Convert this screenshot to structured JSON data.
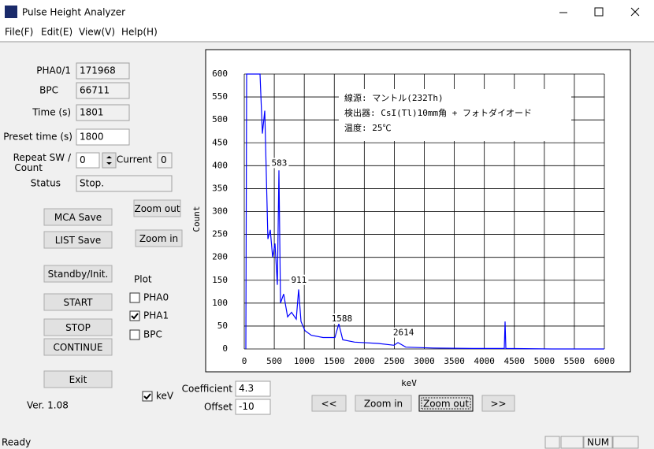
{
  "window": {
    "title": "Pulse Height Analyzer"
  },
  "menu": [
    "File(F)",
    "Edit(E)",
    "View(V)",
    "Help(H)"
  ],
  "fields": [
    {
      "label": "PHA0/1",
      "value": 171968
    },
    {
      "label": "BPC",
      "value": 66711
    },
    {
      "label": "Time (s)",
      "value": 1801
    },
    {
      "label": "Preset time (s)",
      "value": 1800
    },
    {
      "label": "Repeat SW / Count",
      "value": 0
    },
    {
      "label": "Current",
      "value": 0
    },
    {
      "label": "Status",
      "value": "Stop."
    }
  ],
  "left_buttons": [
    "MCA Save",
    "LIST Save",
    "Standby/Init.",
    "START",
    "STOP",
    "CONTINUE",
    "Exit"
  ],
  "zoom_buttons": [
    "Zoom out",
    "Zoom in"
  ],
  "plot_options": {
    "title": "Plot",
    "items": [
      {
        "label": "PHA0",
        "checked": false
      },
      {
        "label": "PHA1",
        "checked": true
      },
      {
        "label": "BPC",
        "checked": false
      }
    ]
  },
  "kev_option": {
    "label": "keV",
    "checked": true
  },
  "version": "Ver. 1.08",
  "calibration": [
    {
      "label": "Coefficient",
      "value": 4.3
    },
    {
      "label": "Offset",
      "value": -10
    }
  ],
  "nav_buttons": [
    "<<",
    "Zoom in",
    "Zoom out",
    ">>"
  ],
  "status_bar": {
    "text": "Ready",
    "indicator": "NUM"
  },
  "chart_data": {
    "type": "line",
    "color": "#0000ff",
    "x": [
      26,
      39,
      263,
      302,
      341,
      394,
      433,
      473,
      512,
      551,
      578,
      604,
      657,
      722,
      788,
      867,
      906,
      945,
      1011,
      1116,
      1313,
      1510,
      1576,
      1641,
      1838,
      2232,
      2495,
      2561,
      2692,
      3151,
      3808,
      4333,
      4346,
      4359,
      5121,
      6000
    ],
    "values": [
      0,
      600,
      600,
      470,
      520,
      240,
      260,
      200,
      230,
      140,
      390,
      100,
      120,
      70,
      80,
      65,
      130,
      60,
      40,
      30,
      25,
      25,
      55,
      20,
      15,
      12,
      8,
      14,
      4,
      2,
      1,
      1,
      60,
      1,
      0,
      0
    ],
    "xlim": [
      0,
      6000
    ],
    "ylim": [
      0,
      600
    ],
    "xticks": [
      0,
      500,
      1000,
      1500,
      2000,
      2500,
      3000,
      3500,
      4000,
      4500,
      5000,
      5500,
      6000
    ],
    "yticks": [
      0,
      50,
      100,
      150,
      200,
      250,
      300,
      350,
      400,
      450,
      500,
      550,
      600
    ],
    "xlabel": "keV",
    "ylabel": "Count",
    "grid": true,
    "annotations": [
      {
        "label": "583",
        "x": 583,
        "y": 405
      },
      {
        "label": "911",
        "x": 911,
        "y": 150
      },
      {
        "label": "1588",
        "x": 1588,
        "y": 65
      },
      {
        "label": "2614",
        "x": 2614,
        "y": 35
      }
    ],
    "text_box": [
      "線源: マントル(232Th)",
      "検出器: CsI(Tl)10mm角 + フォトダイオード",
      "温度: 25℃"
    ]
  }
}
